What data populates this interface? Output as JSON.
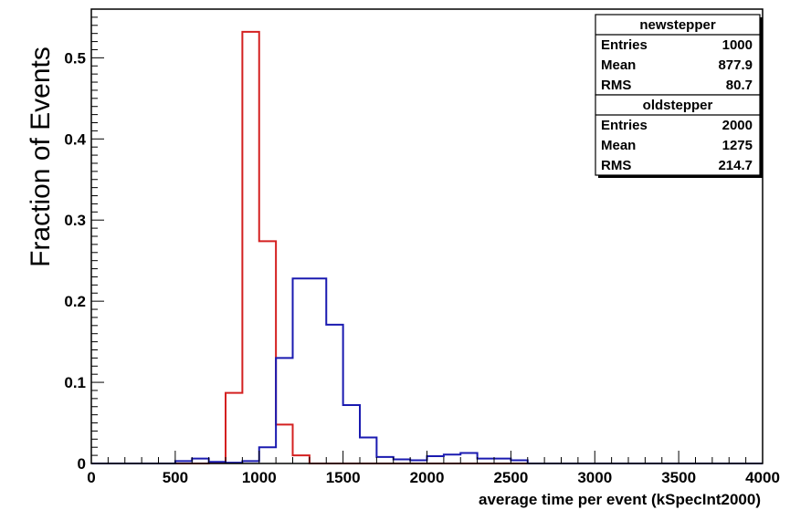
{
  "chart_data": {
    "type": "histogram",
    "xlabel": "average time per event (kSpecInt2000)",
    "ylabel": "Fraction of Events",
    "xlim": [
      0,
      4000
    ],
    "ylim": [
      0,
      0.56
    ],
    "x_ticks": [
      "0",
      "500",
      "1000",
      "1500",
      "2000",
      "2500",
      "3000",
      "3500",
      "4000"
    ],
    "y_ticks": [
      "0",
      "0.1",
      "0.2",
      "0.3",
      "0.4",
      "0.5"
    ],
    "x_tick_values": [
      0,
      500,
      1000,
      1500,
      2000,
      2500,
      3000,
      3500,
      4000
    ],
    "y_tick_values": [
      0,
      0.1,
      0.2,
      0.3,
      0.4,
      0.5
    ],
    "bin_width": 100,
    "grid": false,
    "series": [
      {
        "name": "newstepper",
        "color": "#d42020",
        "bins_start": 0,
        "values": [
          0,
          0,
          0,
          0,
          0,
          0,
          0,
          0.001,
          0.087,
          0.532,
          0.274,
          0.048,
          0.01,
          0,
          0,
          0,
          0,
          0,
          0,
          0,
          0,
          0,
          0,
          0,
          0,
          0,
          0,
          0,
          0,
          0,
          0,
          0,
          0,
          0,
          0,
          0,
          0,
          0,
          0,
          0
        ],
        "stats": [
          {
            "label": "Entries",
            "value": "1000"
          },
          {
            "label": "Mean",
            "value": "877.9"
          },
          {
            "label": "RMS",
            "value": "80.7"
          }
        ]
      },
      {
        "name": "oldstepper",
        "color": "#1a1ab0",
        "bins_start": 0,
        "values": [
          0,
          0,
          0,
          0,
          0,
          0.003,
          0.006,
          0.002,
          0.001,
          0.003,
          0.02,
          0.13,
          0.228,
          0.228,
          0.171,
          0.072,
          0.032,
          0.008,
          0.005,
          0.004,
          0.009,
          0.011,
          0.013,
          0.006,
          0.006,
          0.004,
          0,
          0,
          0,
          0,
          0,
          0,
          0,
          0,
          0,
          0,
          0,
          0,
          0,
          0
        ],
        "stats": [
          {
            "label": "Entries",
            "value": "2000"
          },
          {
            "label": "Mean",
            "value": "1275"
          },
          {
            "label": "RMS",
            "value": "214.7"
          }
        ]
      }
    ],
    "stats_box_position": "top-right"
  }
}
